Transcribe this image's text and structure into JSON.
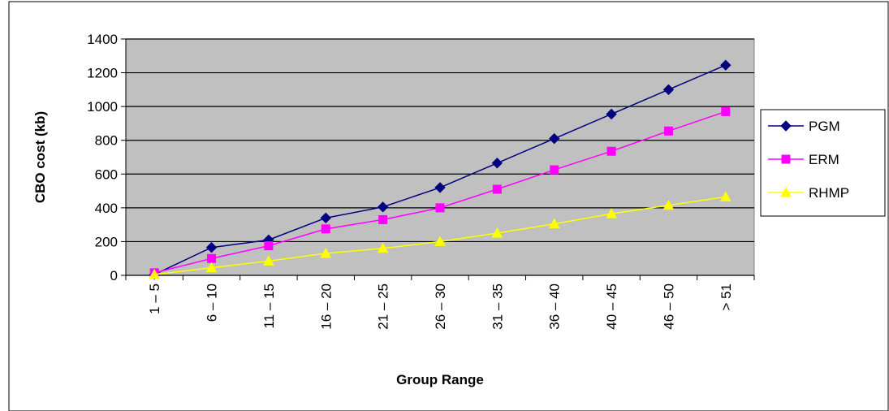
{
  "chart_data": {
    "type": "line",
    "title": "",
    "xlabel": "Group Range",
    "ylabel": "CBO cost (kb)",
    "categories": [
      "1 – 5",
      "6 – 10",
      "11 – 15",
      "16 – 20",
      "21 – 25",
      "26 – 30",
      "31 – 35",
      "36 – 40",
      "40 – 45",
      "46 – 50",
      "> 51"
    ],
    "ylim": [
      0,
      1400
    ],
    "yticks": [
      0,
      200,
      400,
      600,
      800,
      1000,
      1200,
      1400
    ],
    "grid": true,
    "legend_position": "right",
    "plot_background": "#c0c0c0",
    "series": [
      {
        "name": "PGM",
        "color": "#000080",
        "marker": "diamond",
        "values": [
          5,
          165,
          210,
          340,
          405,
          520,
          665,
          810,
          955,
          1100,
          1245
        ]
      },
      {
        "name": "ERM",
        "color": "#ff00ff",
        "marker": "square",
        "values": [
          15,
          100,
          175,
          275,
          330,
          400,
          510,
          625,
          735,
          855,
          970
        ]
      },
      {
        "name": "RHMP",
        "color": "#ffff00",
        "marker": "triangle",
        "values": [
          5,
          45,
          85,
          130,
          160,
          200,
          250,
          305,
          365,
          415,
          465
        ]
      }
    ]
  }
}
